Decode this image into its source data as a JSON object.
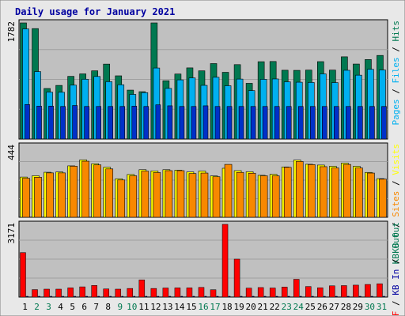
{
  "colors": {
    "background": "#e8e8e8",
    "panel": "#c0c0c0",
    "title": "#0000a0",
    "hits": "#007850",
    "files": "#00b0f0",
    "pages": "#0030c8",
    "visits": "#ffff00",
    "sites": "#f88800",
    "kbin": "#0000a0",
    "kbf": "#ff0000",
    "weekend_label": "#007850",
    "weekday_label": "#000000"
  },
  "chart_data": {
    "type": "bar",
    "title": "Daily usage for January 2021",
    "categories": [
      "1",
      "2",
      "3",
      "4",
      "5",
      "6",
      "7",
      "8",
      "9",
      "10",
      "11",
      "12",
      "13",
      "14",
      "15",
      "16",
      "17",
      "18",
      "19",
      "20",
      "21",
      "22",
      "23",
      "24",
      "25",
      "26",
      "27",
      "28",
      "29",
      "30",
      "31"
    ],
    "weekend_days": [
      "2",
      "3",
      "9",
      "10",
      "16",
      "17",
      "23",
      "24",
      "30",
      "31"
    ],
    "panels": [
      {
        "id": "hits",
        "max_label": "1782",
        "ylim": [
          0,
          1782
        ],
        "legend": [
          "Hits",
          "Files",
          "Pages"
        ],
        "series": [
          {
            "name": "Hits",
            "values": [
              1782,
              1695,
              776,
              823,
              962,
              1000,
              1047,
              1150,
              970,
              751,
              727,
              1782,
              895,
              998,
              1092,
              1047,
              1158,
              1024,
              1142,
              855,
              1187,
              1190,
              1056,
              1054,
              1058,
              1188,
              1058,
              1262,
              1151,
              1220,
              1283
            ]
          },
          {
            "name": "Files",
            "values": [
              1690,
              1035,
              720,
              718,
              827,
              918,
              960,
              880,
              833,
              685,
              712,
              1090,
              777,
              908,
              938,
              824,
              948,
              818,
              920,
              743,
              916,
              922,
              878,
              872,
              868,
              1000,
              866,
              1055,
              980,
              1070,
              1060
            ]
          },
          {
            "name": "Pages",
            "values": [
              530,
              505,
              505,
              500,
              515,
              500,
              500,
              500,
              500,
              505,
              500,
              525,
              510,
              500,
              500,
              510,
              500,
              500,
              500,
              500,
              500,
              500,
              500,
              500,
              500,
              500,
              500,
              500,
              500,
              500,
              500
            ]
          }
        ]
      },
      {
        "id": "visits",
        "max_label": "444",
        "ylim": [
          0,
          444
        ],
        "legend": [
          "Visits",
          "Sites",
          "KB Out"
        ],
        "series": [
          {
            "name": "Visits",
            "values": [
              251,
              259,
              281,
              283,
              321,
              358,
              334,
              312,
              240,
              267,
              297,
              289,
              297,
              294,
              283,
              288,
              258,
              306,
              291,
              284,
              262,
              268,
              314,
              357,
              331,
              326,
              318,
              338,
              318,
              280,
              241
            ]
          },
          {
            "name": "Sites",
            "values": [
              244,
              250,
              277,
              277,
              319,
              350,
              327,
              302,
              233,
              259,
              288,
              279,
              291,
              291,
              273,
              276,
              253,
              330,
              280,
              275,
              259,
              259,
              312,
              348,
              329,
              316,
              308,
              330,
              308,
              276,
              238
            ]
          }
        ]
      },
      {
        "id": "kbf",
        "max_label": "3171",
        "ylim": [
          0,
          3171
        ],
        "legend": [
          "KB F",
          "KB In"
        ],
        "series": [
          {
            "name": "KB F",
            "values": [
              1940,
              325,
              345,
              345,
              400,
              445,
              505,
              355,
              345,
              375,
              747,
              375,
              395,
              400,
              400,
              420,
              320,
              3171,
              1655,
              390,
              415,
              395,
              435,
              775,
              460,
              405,
              490,
              500,
              520,
              550,
              580
            ]
          },
          {
            "name": "KB In",
            "values": [
              10,
              10,
              10,
              10,
              10,
              10,
              10,
              10,
              10,
              10,
              10,
              10,
              10,
              10,
              10,
              10,
              10,
              10,
              10,
              10,
              10,
              10,
              10,
              10,
              10,
              10,
              10,
              10,
              10,
              10,
              10
            ]
          }
        ]
      }
    ],
    "side_labels": [
      {
        "panel": "hits",
        "parts": [
          [
            "Pages",
            "pages"
          ],
          [
            " / ",
            "black"
          ],
          [
            "Files",
            "files"
          ],
          [
            " / ",
            "black"
          ],
          [
            "Hits",
            "hits"
          ]
        ]
      },
      {
        "panel": "visits",
        "parts": [
          [
            "KB Out",
            "hits"
          ],
          [
            " / ",
            "black"
          ],
          [
            "Sites",
            "sites"
          ],
          [
            " / ",
            "black"
          ],
          [
            "Visits",
            "visits"
          ]
        ]
      },
      {
        "panel": "kbf",
        "parts": [
          [
            "KB F",
            "kbf"
          ],
          [
            " / ",
            "black"
          ],
          [
            "KB In",
            "kbin"
          ],
          [
            " / ",
            "black"
          ],
          [
            "KB Out",
            "hits"
          ]
        ]
      }
    ]
  }
}
